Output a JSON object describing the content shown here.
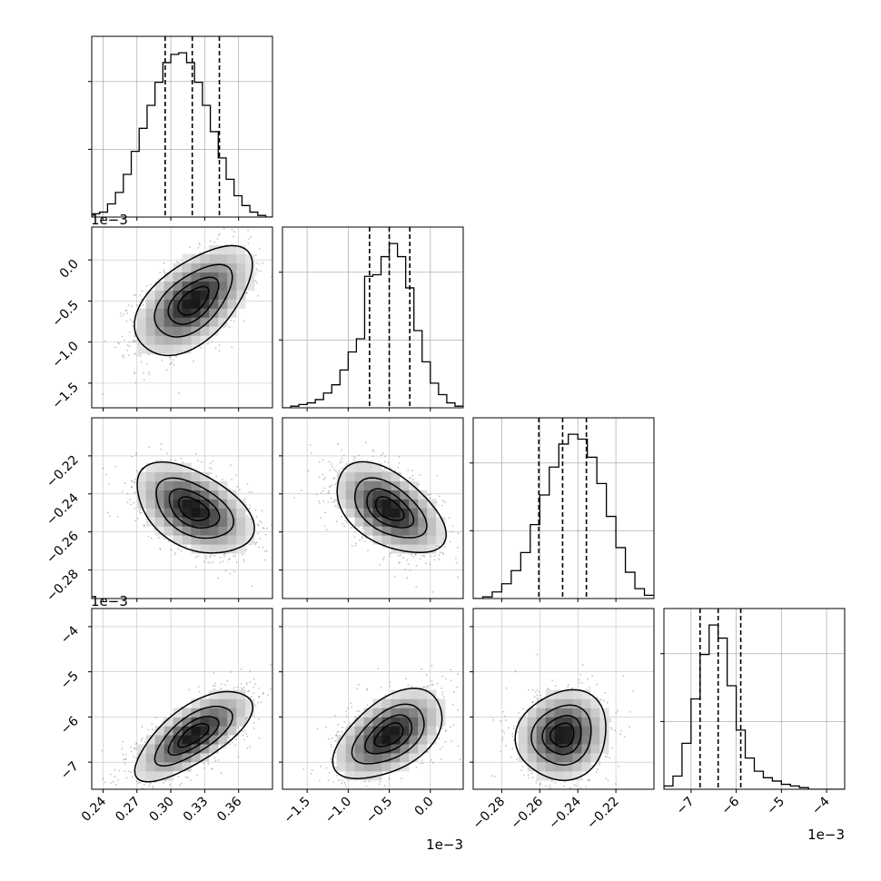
{
  "chart_data": {
    "type": "corner",
    "n_params": 4,
    "panel_labels": [
      "",
      "",
      "",
      ""
    ],
    "axis_offsets": [
      {
        "panel": "row1-y",
        "text": "1e−3"
      },
      {
        "panel": "row3-y",
        "text": "1e−3"
      },
      {
        "panel": "col1-x",
        "text": "1e−3"
      },
      {
        "panel": "col3-x",
        "text": "1e−3"
      }
    ],
    "grid": true,
    "params": [
      {
        "range": [
          0.23,
          0.39
        ],
        "ticks": [
          0.24,
          0.27,
          0.3,
          0.33,
          0.36
        ],
        "tick_labels": [
          "0.24",
          "0.27",
          "0.30",
          "0.33",
          "0.36"
        ],
        "quantiles": [
          0.295,
          0.319,
          0.343
        ],
        "bin_edges": [
          0.23,
          0.237,
          0.244,
          0.251,
          0.258,
          0.265,
          0.272,
          0.279,
          0.286,
          0.293,
          0.3,
          0.307,
          0.314,
          0.321,
          0.328,
          0.335,
          0.342,
          0.349,
          0.356,
          0.363,
          0.37,
          0.377,
          0.384,
          0.39
        ],
        "hist_counts": [
          0.02,
          0.03,
          0.08,
          0.15,
          0.26,
          0.4,
          0.54,
          0.68,
          0.82,
          0.94,
          0.99,
          1.0,
          0.94,
          0.82,
          0.68,
          0.52,
          0.36,
          0.23,
          0.13,
          0.07,
          0.03,
          0.01,
          0.0
        ]
      },
      {
        "range": [
          -1.8,
          0.4
        ],
        "ticks": [
          -1.5,
          -1.0,
          -0.5,
          0.0
        ],
        "tick_labels": [
          "−1.5",
          "−1.0",
          "−0.5",
          "0.0"
        ],
        "quantiles": [
          -0.74,
          -0.5,
          -0.25
        ],
        "bin_edges": [
          -1.8,
          -1.7,
          -1.6,
          -1.5,
          -1.4,
          -1.3,
          -1.2,
          -1.1,
          -1.0,
          -0.9,
          -0.8,
          -0.7,
          -0.6,
          -0.5,
          -0.4,
          -0.3,
          -0.2,
          -0.1,
          0.0,
          0.1,
          0.2,
          0.3,
          0.4
        ],
        "hist_counts": [
          0.0,
          0.01,
          0.02,
          0.03,
          0.05,
          0.09,
          0.14,
          0.23,
          0.34,
          0.42,
          0.8,
          0.81,
          0.92,
          1.0,
          0.92,
          0.73,
          0.47,
          0.28,
          0.15,
          0.08,
          0.03,
          0.01
        ]
      },
      {
        "range": [
          -0.295,
          -0.2
        ],
        "ticks": [
          -0.28,
          -0.26,
          -0.24,
          -0.22
        ],
        "tick_labels": [
          "−0.28",
          "−0.26",
          "−0.24",
          "−0.22"
        ],
        "quantiles": [
          -0.2605,
          -0.248,
          -0.2355
        ],
        "bin_edges": [
          -0.295,
          -0.29,
          -0.285,
          -0.28,
          -0.275,
          -0.27,
          -0.265,
          -0.26,
          -0.255,
          -0.25,
          -0.245,
          -0.24,
          -0.235,
          -0.23,
          -0.225,
          -0.22,
          -0.215,
          -0.21,
          -0.205,
          -0.2
        ],
        "hist_counts": [
          0.0,
          0.01,
          0.04,
          0.09,
          0.17,
          0.28,
          0.45,
          0.63,
          0.8,
          0.94,
          1.0,
          0.97,
          0.86,
          0.7,
          0.5,
          0.31,
          0.16,
          0.06,
          0.02
        ]
      },
      {
        "range": [
          -7.6,
          -3.6
        ],
        "ticks": [
          -7,
          -6,
          -5,
          -4
        ],
        "tick_labels": [
          "−7",
          "−6",
          "−5",
          "−4"
        ],
        "quantiles": [
          -6.8,
          -6.4,
          -5.9
        ],
        "bin_edges": [
          -7.6,
          -7.4,
          -7.2,
          -7.0,
          -6.8,
          -6.6,
          -6.4,
          -6.2,
          -6.0,
          -5.8,
          -5.6,
          -5.4,
          -5.2,
          -5.0,
          -4.8,
          -4.6,
          -4.4,
          -4.2,
          -4.0,
          -3.8,
          -3.6
        ],
        "hist_counts": [
          0.02,
          0.08,
          0.28,
          0.55,
          0.82,
          1.0,
          0.92,
          0.63,
          0.36,
          0.19,
          0.11,
          0.07,
          0.05,
          0.03,
          0.02,
          0.01,
          0.0,
          0.0,
          0.0,
          0.0
        ]
      }
    ],
    "pairs": [
      {
        "x": 0,
        "y": 1,
        "mean": [
          0.32,
          -0.5
        ],
        "std": [
          0.025,
          0.32
        ],
        "rho": 0.55
      },
      {
        "x": 0,
        "y": 2,
        "mean": [
          0.32,
          -0.248
        ],
        "std": [
          0.025,
          0.0115
        ],
        "rho": -0.45
      },
      {
        "x": 1,
        "y": 2,
        "mean": [
          -0.5,
          -0.248
        ],
        "std": [
          0.32,
          0.0115
        ],
        "rho": -0.5
      },
      {
        "x": 0,
        "y": 3,
        "mean": [
          0.32,
          -6.4
        ],
        "std": [
          0.025,
          0.48
        ],
        "rho": 0.7
      },
      {
        "x": 1,
        "y": 3,
        "mean": [
          -0.5,
          -6.4
        ],
        "std": [
          0.32,
          0.48
        ],
        "rho": 0.5
      },
      {
        "x": 2,
        "y": 3,
        "mean": [
          -0.248,
          -6.4
        ],
        "std": [
          0.0115,
          0.48
        ],
        "rho": 0.1
      }
    ],
    "contour_levels_sigma": [
      0.5,
      1.0,
      1.5,
      2.0
    ]
  }
}
